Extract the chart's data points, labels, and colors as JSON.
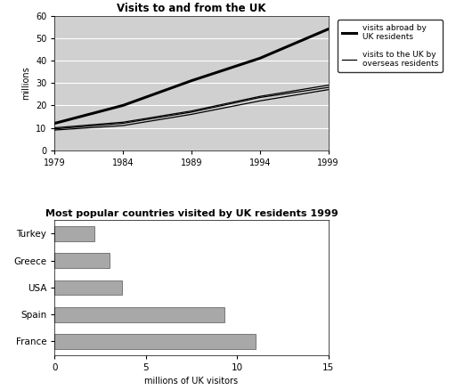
{
  "line_chart": {
    "title": "Visits to and from the UK",
    "ylabel": "millions",
    "years": [
      1979,
      1984,
      1989,
      1994,
      1999
    ],
    "visits_abroad": [
      12,
      20,
      31,
      41,
      54
    ],
    "visits_to_uk_high": [
      10,
      12.5,
      17.5,
      24,
      29
    ],
    "visits_to_uk_mid": [
      9.5,
      12,
      17,
      23.5,
      28
    ],
    "visits_to_uk_low": [
      9,
      11,
      16,
      22,
      27
    ],
    "xlim": [
      1979,
      1999
    ],
    "ylim": [
      0,
      60
    ],
    "yticks": [
      0,
      10,
      20,
      30,
      40,
      50,
      60
    ],
    "xticks": [
      1979,
      1984,
      1989,
      1994,
      1999
    ],
    "legend_abroad": "visits abroad by\nUK residents",
    "legend_to_uk": "visits to the UK by\noverseas residents",
    "bg_color": "#d0d0d0"
  },
  "bar_chart": {
    "title": "Most popular countries visited by UK residents 1999",
    "xlabel": "millions of UK visitors",
    "countries": [
      "Turkey",
      "Greece",
      "USA",
      "Spain",
      "France"
    ],
    "values": [
      2.2,
      3.0,
      3.7,
      9.3,
      11.0
    ],
    "bar_color": "#a8a8a8",
    "xlim": [
      0,
      15
    ],
    "xticks": [
      0,
      5,
      10,
      15
    ],
    "bg_color": "#ffffff"
  }
}
